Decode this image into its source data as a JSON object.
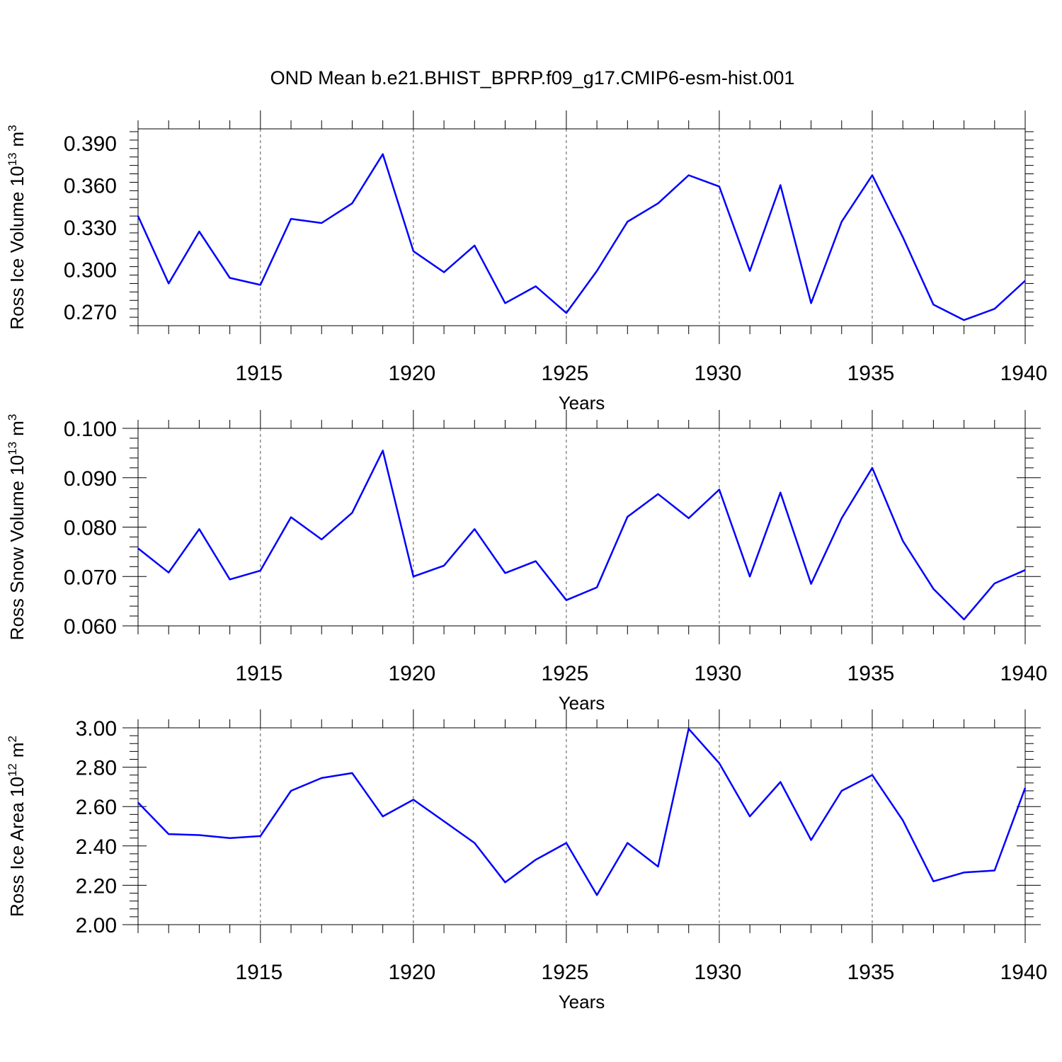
{
  "figure": {
    "title": "OND Mean b.e21.BHIST_BPRP.f09_g17.CMIP6-esm-hist.001"
  },
  "colors": {
    "series": "#0000ff",
    "axes": "#000000",
    "grid": "#555555"
  },
  "chart_data": [
    {
      "type": "line",
      "title": "",
      "xlabel": "Years",
      "ylabel_main": "Ross Ice Volume 10",
      "ylabel_exp": "13",
      "ylabel_unit": "m",
      "ylabel_unit_exp": "3",
      "xlim": [
        1911,
        1940
      ],
      "ylim": [
        0.26,
        0.4
      ],
      "xticks": [
        1915,
        1920,
        1925,
        1930,
        1935,
        1940
      ],
      "xtick_labels": [
        "1915",
        "1920",
        "1925",
        "1930",
        "1935",
        "1940"
      ],
      "yticks": [
        0.27,
        0.3,
        0.33,
        0.36,
        0.39
      ],
      "ytick_labels": [
        "0.270",
        "0.300",
        "0.330",
        "0.360",
        "0.390"
      ],
      "grid": "dashed vertical at major x ticks",
      "x": [
        1911,
        1912,
        1913,
        1914,
        1915,
        1916,
        1917,
        1918,
        1919,
        1920,
        1921,
        1922,
        1923,
        1924,
        1925,
        1926,
        1927,
        1928,
        1929,
        1930,
        1931,
        1932,
        1933,
        1934,
        1935,
        1936,
        1937,
        1938,
        1939,
        1940
      ],
      "series": [
        {
          "values": [
            0.338,
            0.29,
            0.327,
            0.294,
            0.289,
            0.336,
            0.333,
            0.347,
            0.382,
            0.313,
            0.298,
            0.317,
            0.276,
            0.288,
            0.269,
            0.299,
            0.334,
            0.347,
            0.367,
            0.359,
            0.299,
            0.36,
            0.276,
            0.334,
            0.367,
            0.323,
            0.275,
            0.264,
            0.272,
            0.292
          ],
          "color": "#0000ff"
        }
      ]
    },
    {
      "type": "line",
      "title": "",
      "xlabel": "Years",
      "ylabel_main": "Ross Snow Volume 10",
      "ylabel_exp": "13",
      "ylabel_unit": "m",
      "ylabel_unit_exp": "3",
      "xlim": [
        1911,
        1940
      ],
      "ylim": [
        0.06,
        0.1
      ],
      "xticks": [
        1915,
        1920,
        1925,
        1930,
        1935,
        1940
      ],
      "xtick_labels": [
        "1915",
        "1920",
        "1925",
        "1930",
        "1935",
        "1940"
      ],
      "yticks": [
        0.06,
        0.07,
        0.08,
        0.09,
        0.1
      ],
      "ytick_labels": [
        "0.060",
        "0.070",
        "0.080",
        "0.090",
        "0.100"
      ],
      "grid": "dashed vertical at major x ticks",
      "x": [
        1911,
        1912,
        1913,
        1914,
        1915,
        1916,
        1917,
        1918,
        1919,
        1920,
        1921,
        1922,
        1923,
        1924,
        1925,
        1926,
        1927,
        1928,
        1929,
        1930,
        1931,
        1932,
        1933,
        1934,
        1935,
        1936,
        1937,
        1938,
        1939,
        1940
      ],
      "series": [
        {
          "values": [
            0.0757,
            0.0708,
            0.0796,
            0.0694,
            0.0712,
            0.082,
            0.0775,
            0.0829,
            0.0955,
            0.07,
            0.0722,
            0.0796,
            0.0707,
            0.0731,
            0.0652,
            0.0678,
            0.0821,
            0.0867,
            0.0818,
            0.0876,
            0.07,
            0.087,
            0.0685,
            0.0818,
            0.092,
            0.0772,
            0.0675,
            0.0613,
            0.0686,
            0.0713
          ],
          "color": "#0000ff"
        }
      ]
    },
    {
      "type": "line",
      "title": "",
      "xlabel": "Years",
      "ylabel_main": "Ross Ice Area 10",
      "ylabel_exp": "12",
      "ylabel_unit": "m",
      "ylabel_unit_exp": "2",
      "xlim": [
        1911,
        1940
      ],
      "ylim": [
        2.0,
        3.0
      ],
      "xticks": [
        1915,
        1920,
        1925,
        1930,
        1935,
        1940
      ],
      "xtick_labels": [
        "1915",
        "1920",
        "1925",
        "1930",
        "1935",
        "1940"
      ],
      "yticks": [
        2.0,
        2.2,
        2.4,
        2.6,
        2.8,
        3.0
      ],
      "ytick_labels": [
        "2.00",
        "2.20",
        "2.40",
        "2.60",
        "2.80",
        "3.00"
      ],
      "grid": "dashed vertical at major x ticks",
      "x": [
        1911,
        1912,
        1913,
        1914,
        1915,
        1916,
        1917,
        1918,
        1919,
        1920,
        1921,
        1922,
        1923,
        1924,
        1925,
        1926,
        1927,
        1928,
        1929,
        1930,
        1931,
        1932,
        1933,
        1934,
        1935,
        1936,
        1937,
        1938,
        1939,
        1940
      ],
      "series": [
        {
          "values": [
            2.62,
            2.46,
            2.455,
            2.44,
            2.45,
            2.68,
            2.745,
            2.77,
            2.55,
            2.635,
            2.525,
            2.415,
            2.215,
            2.33,
            2.415,
            2.15,
            2.415,
            2.295,
            2.995,
            2.82,
            2.55,
            2.725,
            2.43,
            2.68,
            2.76,
            2.53,
            2.22,
            2.265,
            2.275,
            2.695
          ],
          "color": "#0000ff"
        }
      ]
    }
  ]
}
